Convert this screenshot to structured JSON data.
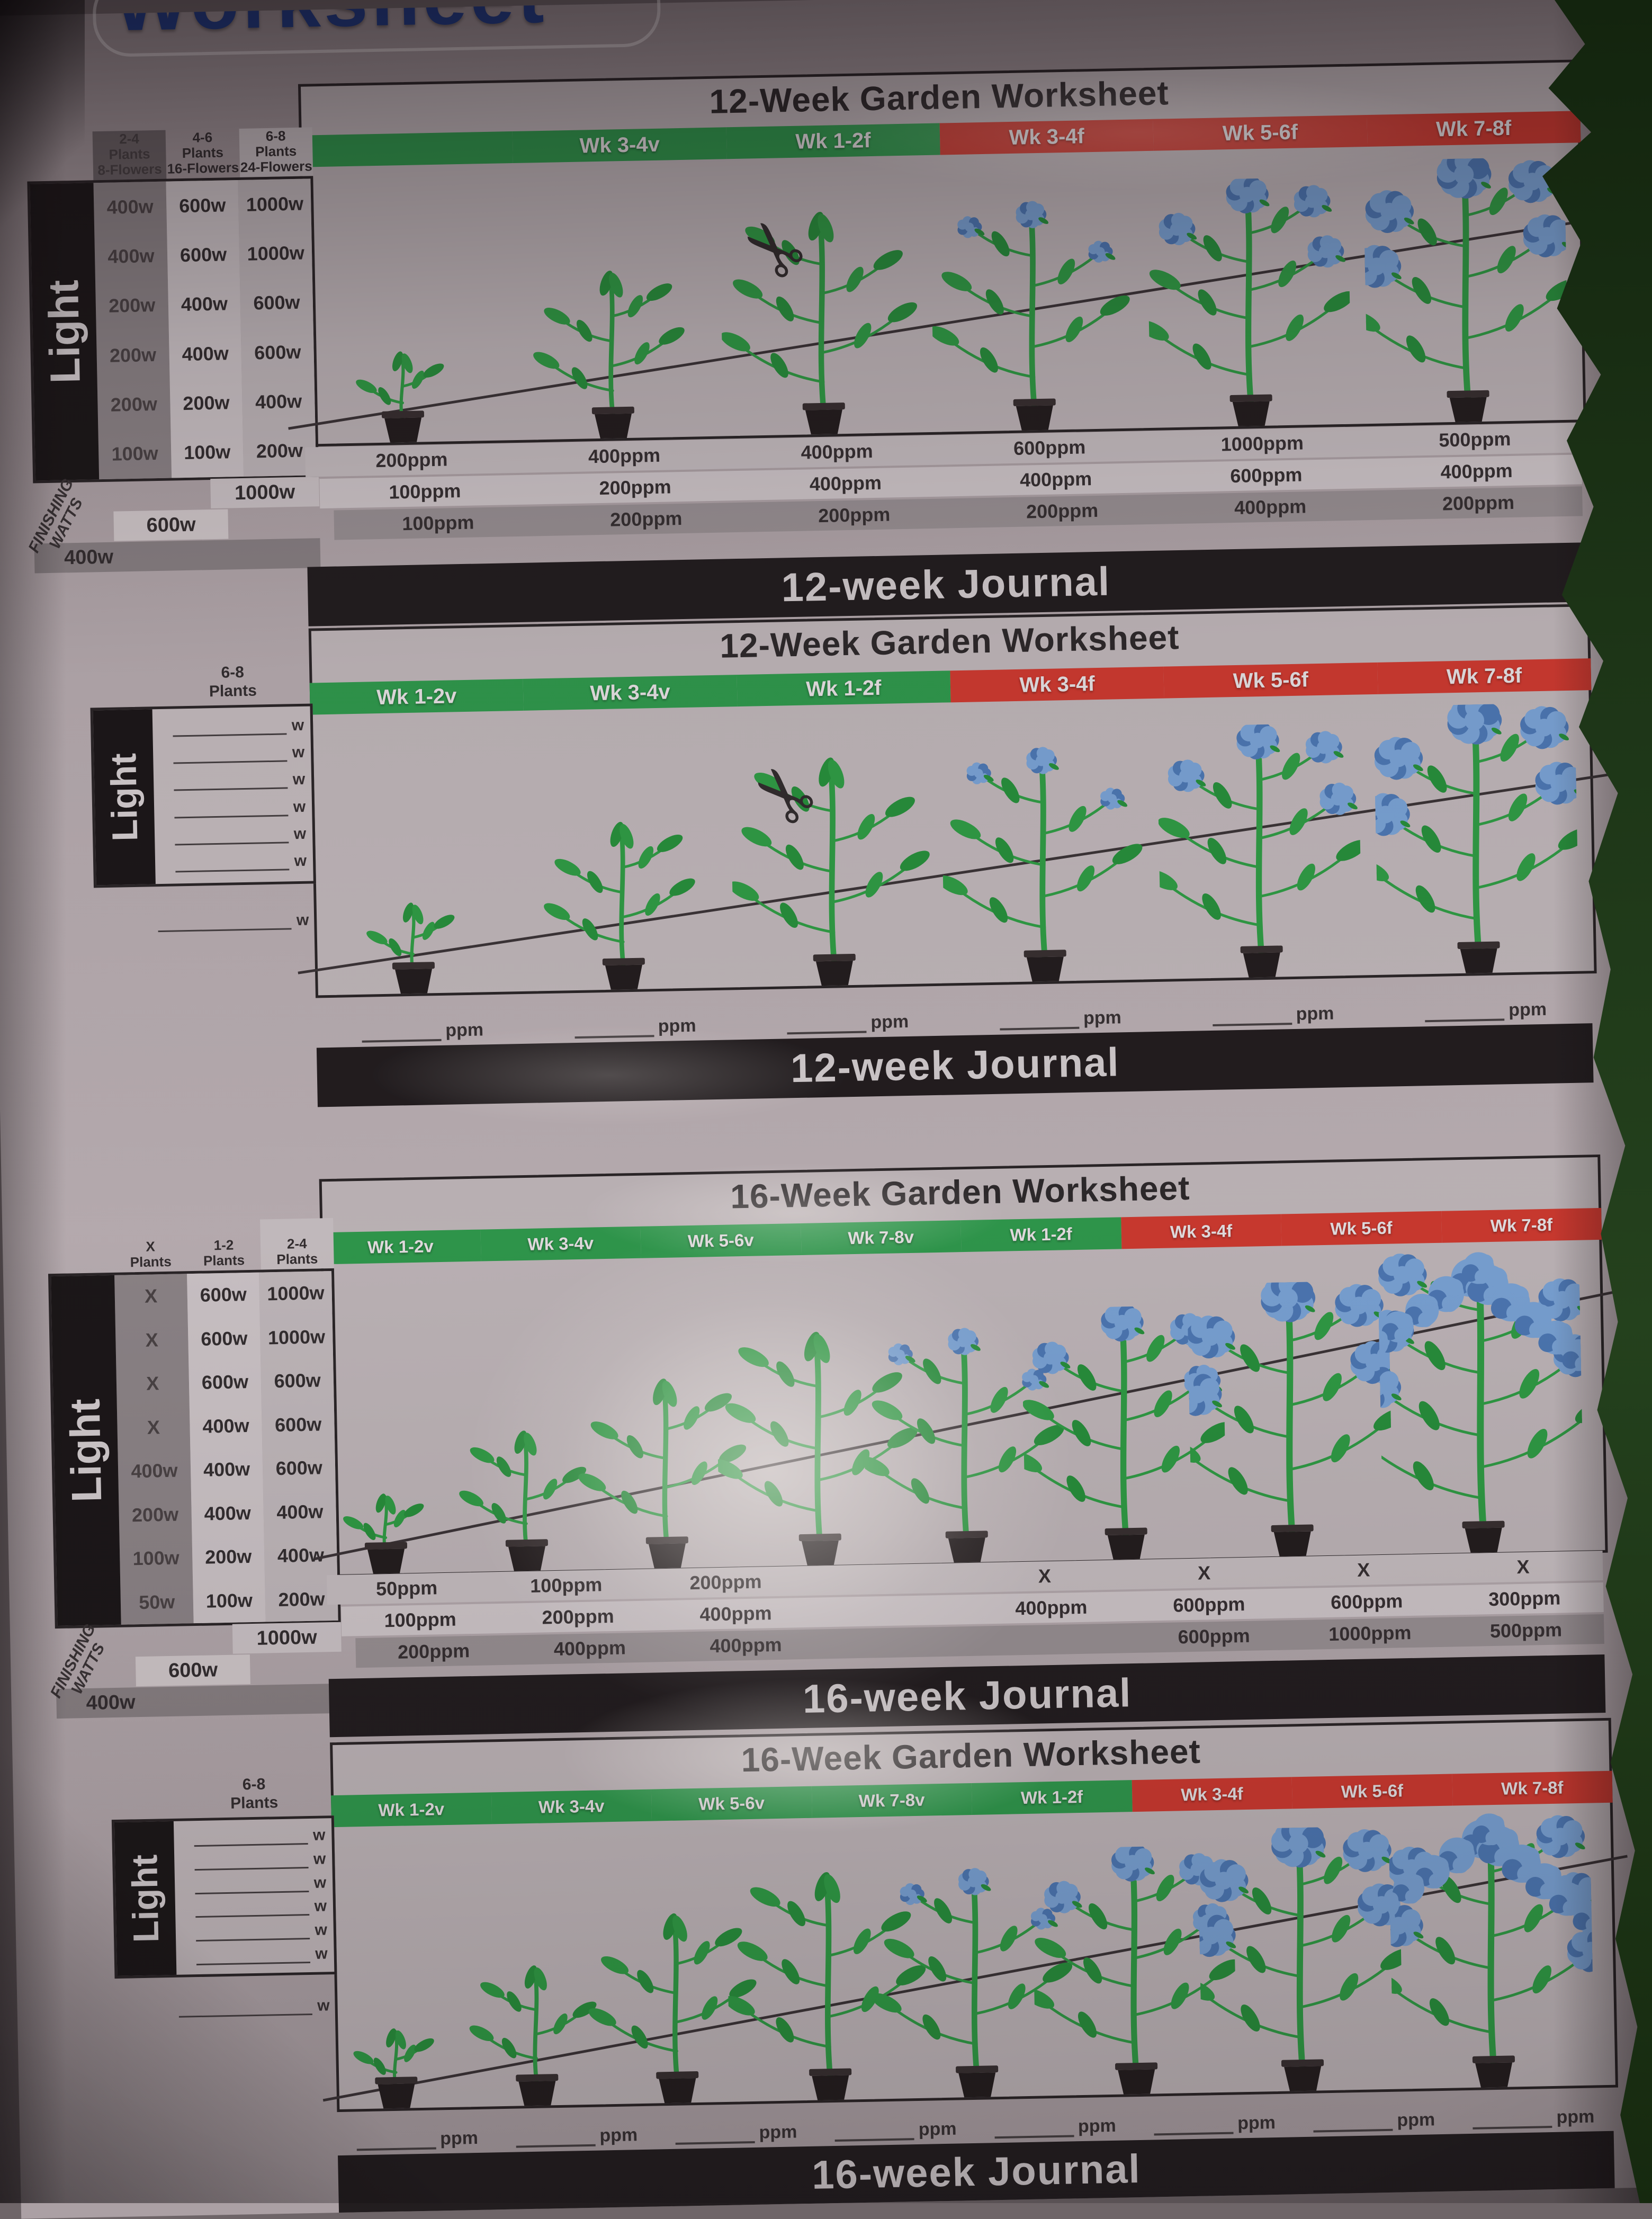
{
  "photo": {
    "cut_title": "Worksheet"
  },
  "colors": {
    "veg_green": "#2f9b4d",
    "bloom_red": "#d03a30",
    "flower_blue": "#7ba5d8",
    "journal_black": "#221d1f"
  },
  "panels": [
    {
      "title": "12-Week Garden Worksheet",
      "journal": "12-week Journal",
      "weeks": [
        {
          "label": "",
          "color": "green"
        },
        {
          "label": "Wk 3-4v",
          "color": "green"
        },
        {
          "label": "Wk 1-2f",
          "color": "green"
        },
        {
          "label": "Wk 3-4f",
          "color": "red"
        },
        {
          "label": "Wk 5-6f",
          "color": "red"
        },
        {
          "label": "Wk 7-8f",
          "color": "red"
        }
      ],
      "ppm_rows": [
        [
          "200ppm",
          "400ppm",
          "400ppm",
          "600ppm",
          "1000ppm",
          "500ppm"
        ],
        [
          "100ppm",
          "200ppm",
          "400ppm",
          "400ppm",
          "600ppm",
          "400ppm"
        ],
        [
          "100ppm",
          "200ppm",
          "200ppm",
          "200ppm",
          "400ppm",
          "200ppm"
        ]
      ],
      "table": {
        "headers": [
          [
            "2-4",
            "Plants",
            "8-Flowers"
          ],
          [
            "4-6",
            "Plants",
            "16-Flowers"
          ],
          [
            "6-8",
            "Plants",
            "24-Flowers"
          ]
        ],
        "light_label": "Light",
        "rows": [
          [
            "400w",
            "600w",
            "1000w"
          ],
          [
            "400w",
            "600w",
            "1000w"
          ],
          [
            "200w",
            "400w",
            "600w"
          ],
          [
            "200w",
            "400w",
            "600w"
          ],
          [
            "200w",
            "200w",
            "400w"
          ],
          [
            "100w",
            "100w",
            "200w"
          ]
        ],
        "finishing_label": "FINISHING WATTS",
        "finishing": [
          "1000w",
          "600w",
          "400w"
        ]
      }
    },
    {
      "title": "12-Week Garden Worksheet",
      "journal": "12-week Journal",
      "weeks": [
        {
          "label": "Wk 1-2v",
          "color": "green"
        },
        {
          "label": "Wk 3-4v",
          "color": "green"
        },
        {
          "label": "Wk 1-2f",
          "color": "green"
        },
        {
          "label": "Wk 3-4f",
          "color": "red"
        },
        {
          "label": "Wk 5-6f",
          "color": "red"
        },
        {
          "label": "Wk 7-8f",
          "color": "red"
        }
      ],
      "plants_header": [
        "6-8",
        "Plants"
      ],
      "light_label": "Light",
      "watt_unit": "w",
      "watt_blank_count": 6,
      "ppm_unit": "ppm",
      "ppm_blank_count": 6
    },
    {
      "title": "16-Week Garden Worksheet",
      "journal": "16-week Journal",
      "weeks": [
        {
          "label": "Wk 1-2v",
          "color": "green"
        },
        {
          "label": "Wk 3-4v",
          "color": "green"
        },
        {
          "label": "Wk 5-6v",
          "color": "green"
        },
        {
          "label": "Wk 7-8v",
          "color": "green"
        },
        {
          "label": "Wk 1-2f",
          "color": "green"
        },
        {
          "label": "Wk 3-4f",
          "color": "red"
        },
        {
          "label": "Wk 5-6f",
          "color": "red"
        },
        {
          "label": "Wk 7-8f",
          "color": "red"
        }
      ],
      "ppm_rows": [
        [
          "50ppm",
          "100ppm",
          "200ppm",
          "",
          "X",
          "X",
          "X",
          "X"
        ],
        [
          "100ppm",
          "200ppm",
          "400ppm",
          "",
          "400ppm",
          "600ppm",
          "600ppm",
          "300ppm"
        ],
        [
          "200ppm",
          "400ppm",
          "400ppm",
          "",
          "",
          "600ppm",
          "1000ppm",
          "500ppm"
        ]
      ],
      "table": {
        "headers": [
          [
            "X",
            "Plants"
          ],
          [
            "1-2",
            "Plants"
          ],
          [
            "2-4",
            "Plants"
          ]
        ],
        "light_label": "Light",
        "rows": [
          [
            "X",
            "600w",
            "1000w"
          ],
          [
            "X",
            "600w",
            "1000w"
          ],
          [
            "X",
            "600w",
            "600w"
          ],
          [
            "X",
            "400w",
            "600w"
          ],
          [
            "400w",
            "400w",
            "600w"
          ],
          [
            "200w",
            "400w",
            "400w"
          ],
          [
            "100w",
            "200w",
            "400w"
          ],
          [
            "50w",
            "100w",
            "200w"
          ]
        ],
        "finishing_label": "FINISHING WATTS",
        "finishing": [
          "1000w",
          "600w",
          "400w"
        ]
      }
    },
    {
      "title": "16-Week Garden Worksheet",
      "journal": "16-week Journal",
      "weeks": [
        {
          "label": "Wk 1-2v",
          "color": "green"
        },
        {
          "label": "Wk 3-4v",
          "color": "green"
        },
        {
          "label": "Wk 5-6v",
          "color": "green"
        },
        {
          "label": "Wk 7-8v",
          "color": "green"
        },
        {
          "label": "Wk 1-2f",
          "color": "green"
        },
        {
          "label": "Wk 3-4f",
          "color": "red"
        },
        {
          "label": "Wk 5-6f",
          "color": "red"
        },
        {
          "label": "Wk 7-8f",
          "color": "red"
        }
      ],
      "plants_header": [
        "6-8",
        "Plants"
      ],
      "light_label": "Light",
      "watt_unit": "w",
      "watt_blank_count": 6,
      "ppm_unit": "ppm",
      "ppm_blank_count": 8
    }
  ]
}
